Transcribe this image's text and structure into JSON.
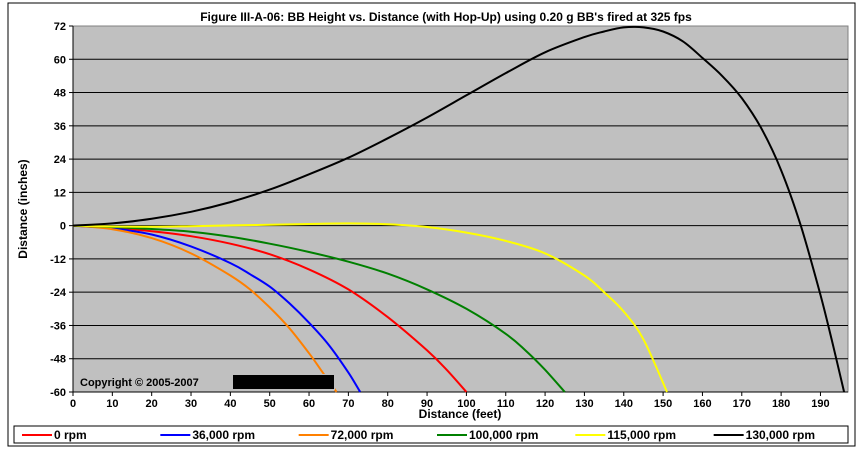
{
  "chart_data": {
    "type": "line",
    "title": "Figure III-A-06:  BB Height vs. Distance (with Hop-Up) using 0.20 g BB's fired at 325 fps",
    "xlabel": "Distance (feet)",
    "ylabel": "Distance (inches)",
    "xlim": [
      0,
      197
    ],
    "ylim": [
      -60,
      72
    ],
    "xticks": [
      0,
      10,
      20,
      30,
      40,
      50,
      60,
      70,
      80,
      90,
      100,
      110,
      120,
      130,
      140,
      150,
      160,
      170,
      180,
      190
    ],
    "yticks": [
      72,
      60,
      48,
      36,
      24,
      12,
      0,
      -12,
      -24,
      -36,
      -48,
      -60
    ],
    "grid": "horizontal",
    "legend_position": "bottom",
    "background_color": "#c0c0c0",
    "annotation": "Copyright © 2005-2007",
    "series": [
      {
        "name": "0 rpm",
        "color": "#ff0000",
        "x": [
          0,
          10,
          20,
          30,
          40,
          50,
          60,
          70,
          80,
          90,
          95,
          100
        ],
        "y": [
          0,
          -0.8,
          -2,
          -3.8,
          -6.5,
          -10.3,
          -15.8,
          -23,
          -33,
          -45,
          -52,
          -60
        ]
      },
      {
        "name": "36,000 rpm",
        "color": "#0000ff",
        "x": [
          0,
          10,
          20,
          30,
          40,
          45,
          50,
          55,
          60,
          65,
          70,
          73
        ],
        "y": [
          0,
          -1,
          -3.2,
          -7.5,
          -13.5,
          -17.5,
          -22,
          -28,
          -35,
          -43,
          -53,
          -60
        ]
      },
      {
        "name": "72,000 rpm",
        "color": "#ff8000",
        "x": [
          0,
          10,
          20,
          30,
          40,
          45,
          50,
          55,
          60,
          63,
          67
        ],
        "y": [
          0,
          -1.3,
          -4.5,
          -10,
          -18,
          -23,
          -29.5,
          -37,
          -46,
          -52,
          -60
        ]
      },
      {
        "name": "100,000 rpm",
        "color": "#008000",
        "x": [
          0,
          10,
          20,
          30,
          40,
          50,
          60,
          70,
          80,
          90,
          100,
          110,
          115,
          120,
          125
        ],
        "y": [
          0,
          -0.5,
          -1.2,
          -2.2,
          -4,
          -6.5,
          -9.5,
          -13,
          -17.3,
          -23,
          -30,
          -39,
          -45,
          -52,
          -60
        ]
      },
      {
        "name": "115,000 rpm",
        "color": "#ffff00",
        "x": [
          0,
          10,
          20,
          30,
          40,
          50,
          60,
          70,
          80,
          90,
          100,
          110,
          120,
          130,
          135,
          140,
          145,
          151
        ],
        "y": [
          0,
          -0.3,
          -0.4,
          -0.2,
          0.1,
          0.3,
          0.6,
          0.8,
          0.5,
          -0.5,
          -2.5,
          -5.5,
          -10,
          -18,
          -24,
          -31,
          -41,
          -60
        ]
      },
      {
        "name": "130,000 rpm",
        "color": "#000000",
        "x": [
          0,
          10,
          20,
          30,
          40,
          50,
          60,
          70,
          80,
          90,
          100,
          110,
          120,
          130,
          135,
          140,
          145,
          150,
          155,
          160,
          165,
          170,
          175,
          180,
          185,
          190,
          193,
          196
        ],
        "y": [
          0,
          0.8,
          2.5,
          5,
          8.5,
          13,
          18.5,
          24.5,
          31.5,
          39,
          47,
          55,
          62.5,
          68,
          70,
          71.5,
          71.5,
          70,
          66.5,
          60.5,
          54,
          46,
          35,
          20,
          0,
          -25,
          -42,
          -60
        ]
      }
    ]
  }
}
